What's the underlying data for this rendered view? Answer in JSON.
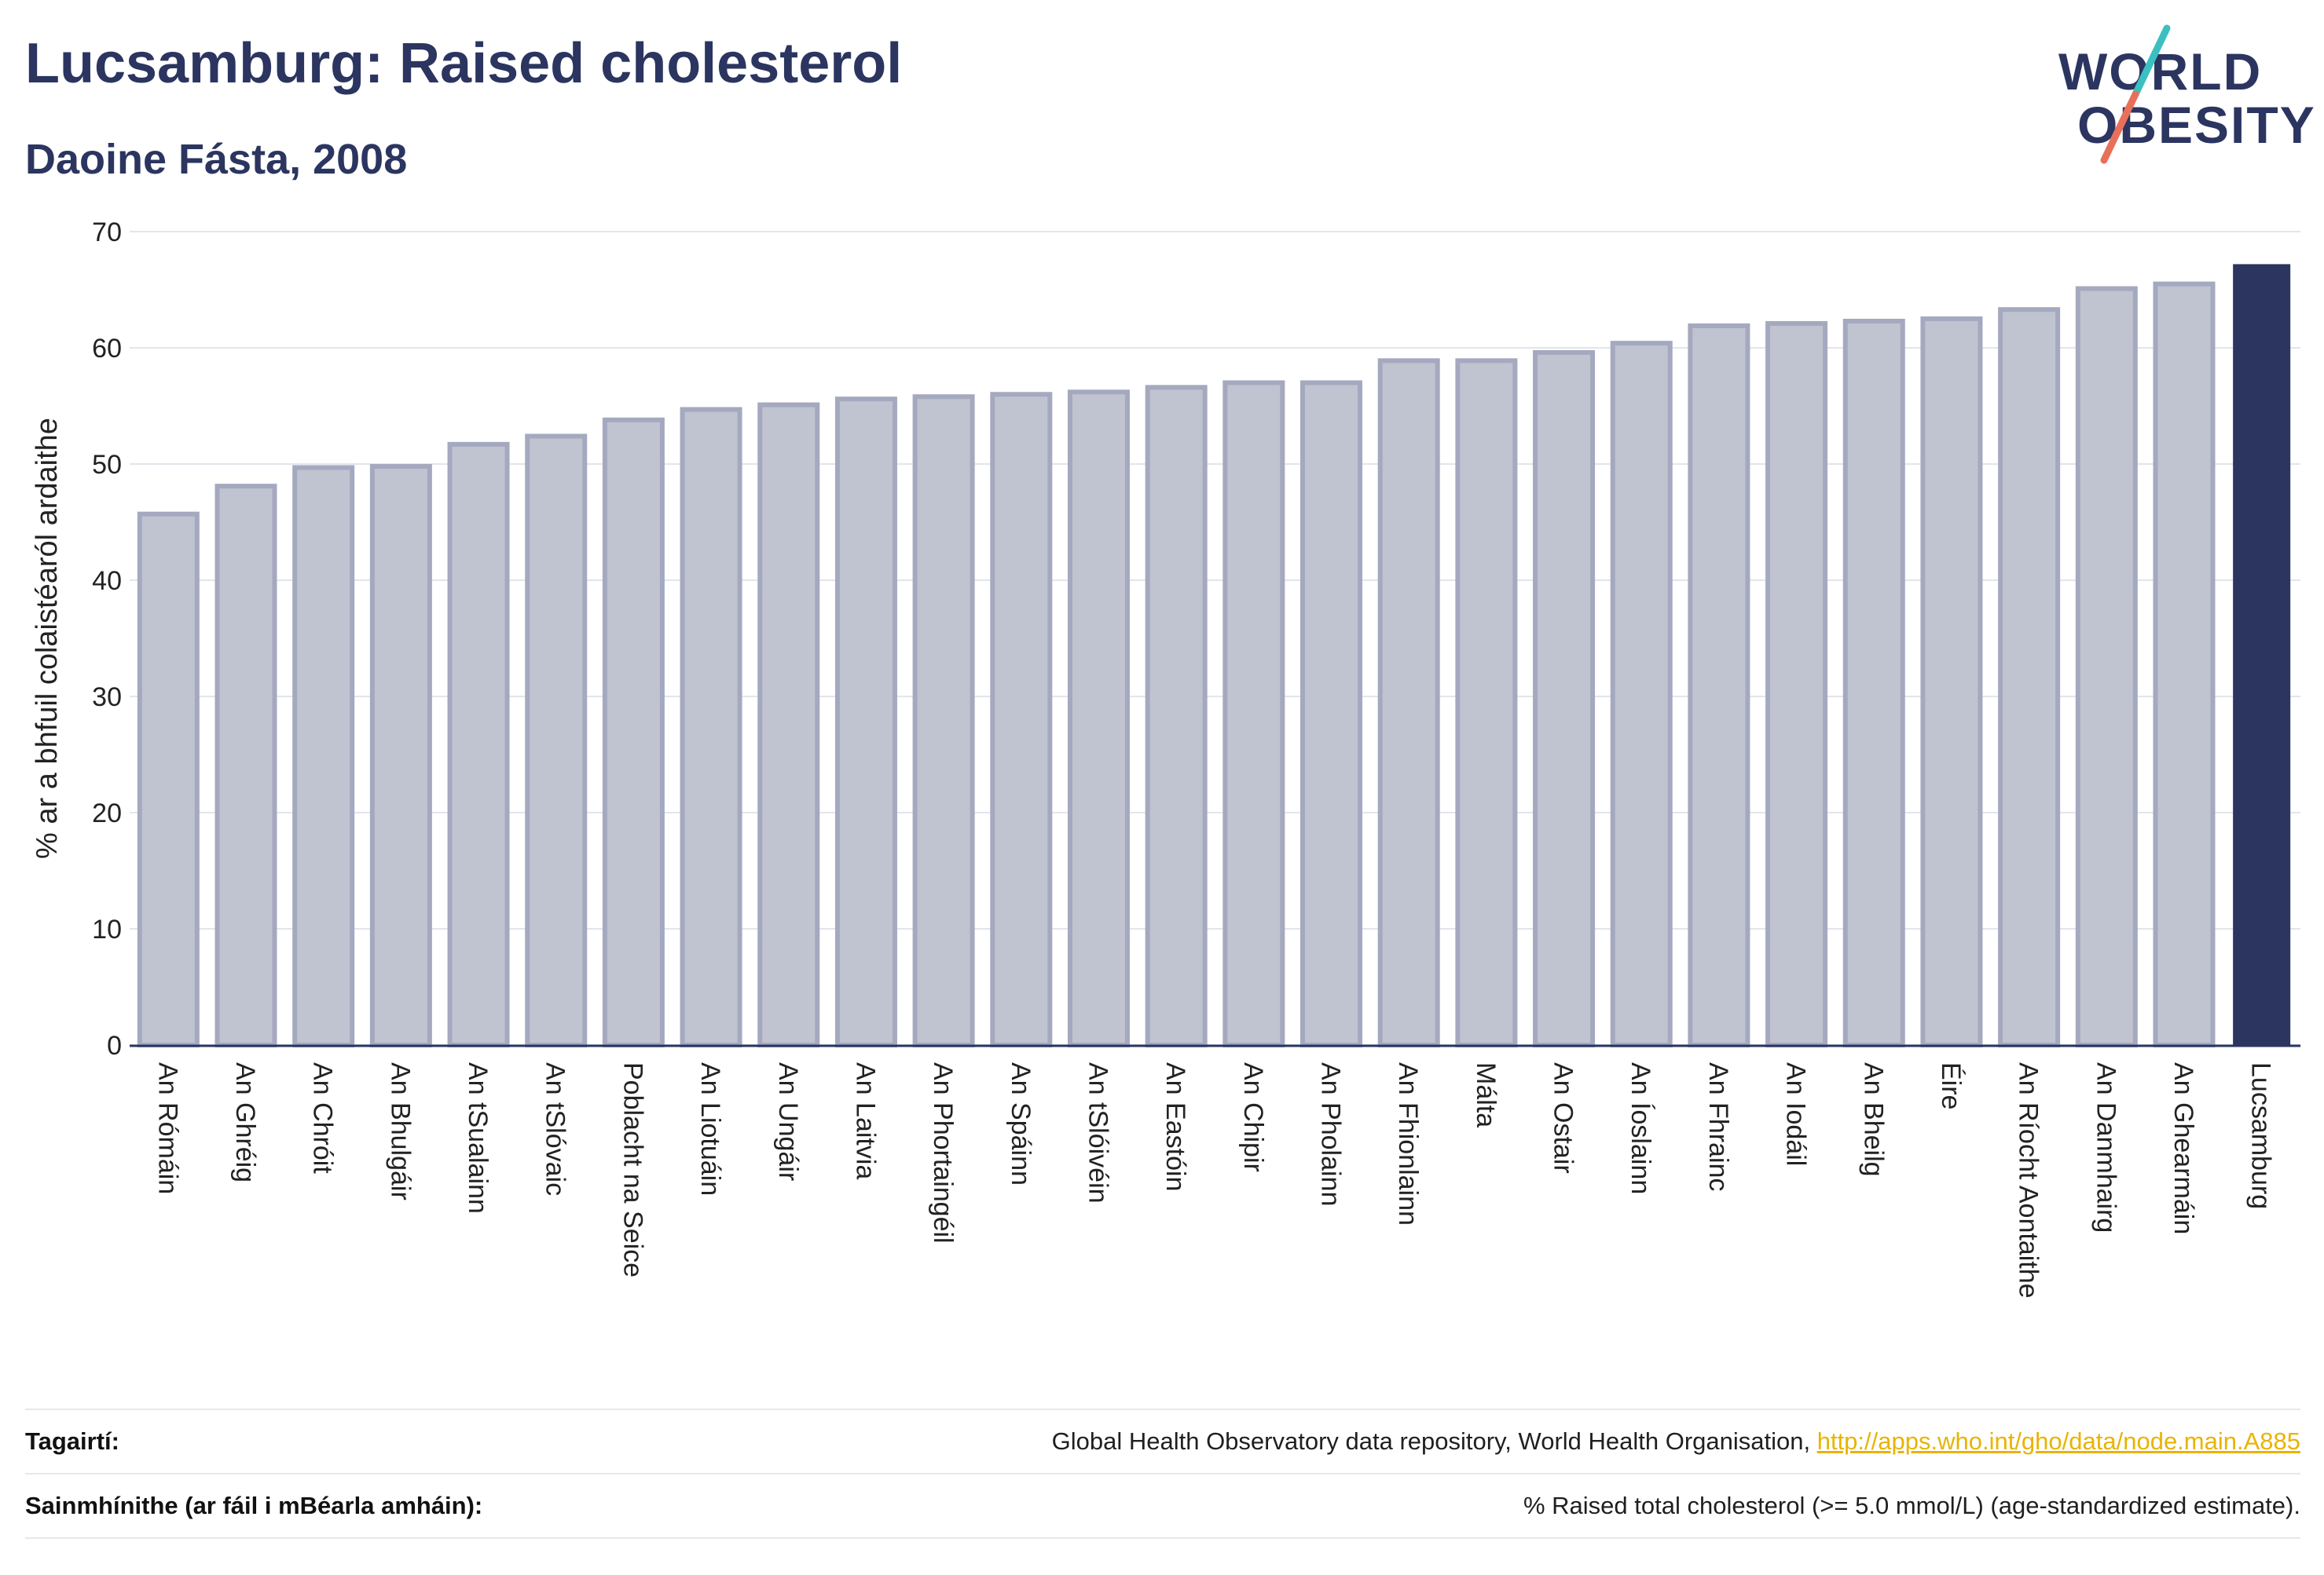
{
  "header": {
    "title": "Lucsamburg: Raised cholesterol",
    "subtitle": "Daoine Fásta, 2008"
  },
  "logo": {
    "line1": "WORLD",
    "line2": "OBESITY",
    "colors": {
      "text": "#2b3560",
      "slash_top": "#3bbfc0",
      "slash_bottom": "#e8705a"
    }
  },
  "chart_data": {
    "type": "bar",
    "ylabel": "% ar a bhfuil colaistéaról ardaithe",
    "ylim": [
      0,
      70
    ],
    "yticks": [
      0,
      10,
      20,
      30,
      40,
      50,
      60,
      70
    ],
    "grid": true,
    "highlight": "Lucsamburg",
    "colors": {
      "bar": "#c0c3d0",
      "bar_edge": "#a5a9bf",
      "highlight": "#2b3560"
    },
    "categories": [
      "An Rómáin",
      "An Ghréig",
      "An Chróit",
      "An Bhulgáir",
      "An tSualainn",
      "An tSlóvaic",
      "Poblacht na Seice",
      "An Liotuáin",
      "An Ungáir",
      "An Laitvia",
      "An Phortaingéil",
      "An Spáinn",
      "An tSlóivéin",
      "An Eastóin",
      "An Chipir",
      "An Pholainn",
      "An Fhionlainn",
      "Málta",
      "An Ostair",
      "An Íoslainn",
      "An Fhrainc",
      "An Iodáil",
      "An Bheilg",
      "Éire",
      "An Ríocht Aontaithe",
      "An Danmhairg",
      "An Ghearmáin",
      "Lucsamburg"
    ],
    "values": [
      45.9,
      48.3,
      49.9,
      50.0,
      51.9,
      52.6,
      54.0,
      54.9,
      55.3,
      55.8,
      56.0,
      56.2,
      56.4,
      56.8,
      57.2,
      57.2,
      59.1,
      59.1,
      59.8,
      60.6,
      62.1,
      62.3,
      62.5,
      62.7,
      63.5,
      65.3,
      65.7,
      67.2
    ]
  },
  "footer": {
    "references_label": "Tagairtí:",
    "references_text": "Global Health Observatory data repository, World Health Organisation, ",
    "references_link": "http://apps.who.int/gho/data/node.main.A885",
    "definitions_label": "Sainmhínithe (ar fáil i mBéarla amháin):",
    "definitions_text": "% Raised total cholesterol (>= 5.0 mmol/L) (age-standardized estimate)."
  }
}
